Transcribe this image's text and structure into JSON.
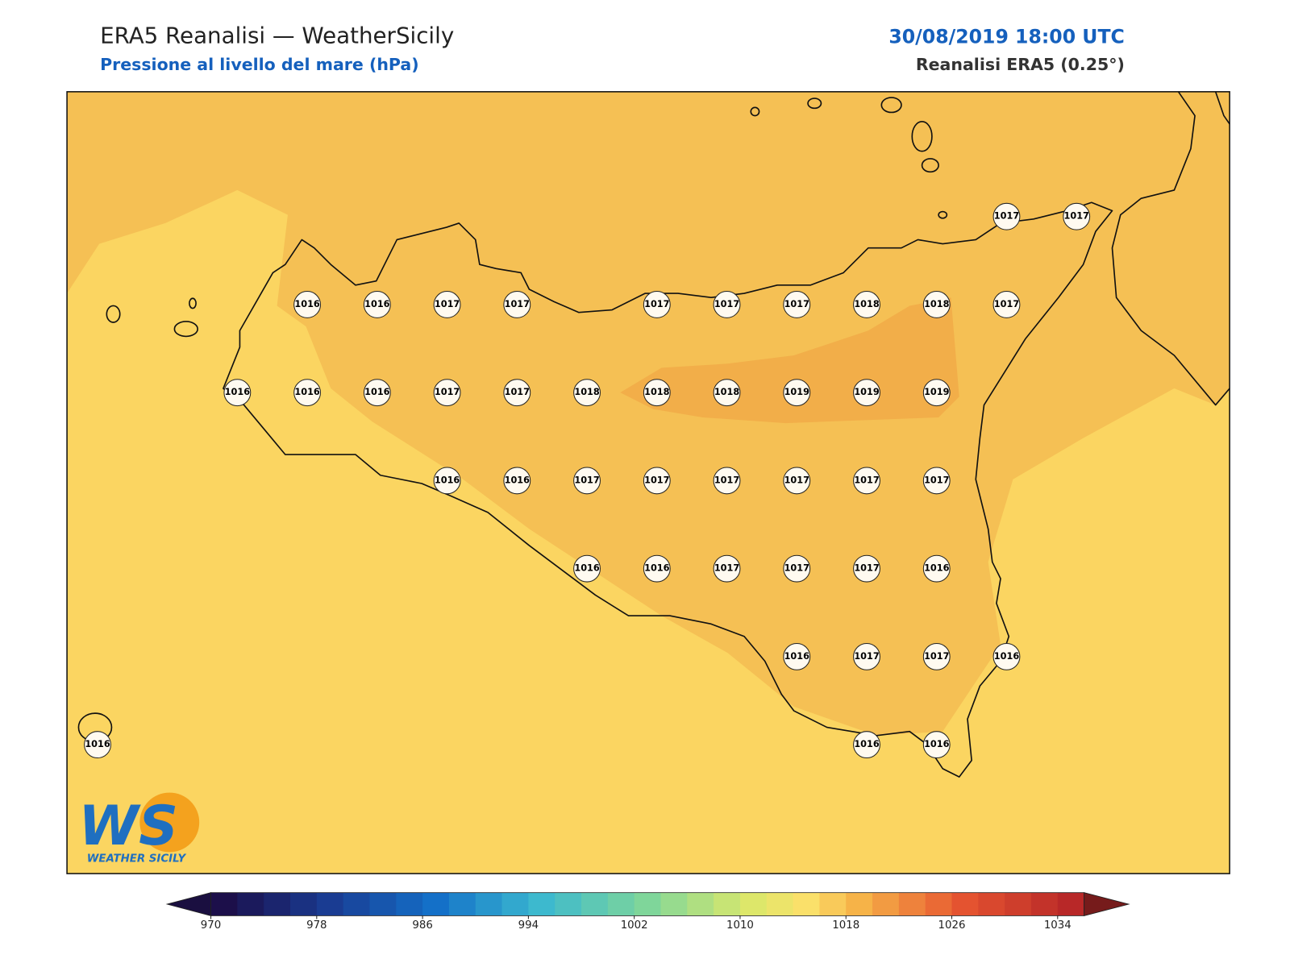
{
  "header": {
    "title": "ERA5 Reanalisi — WeatherSicily",
    "subtitle": "Pressione al livello del mare (hPa)",
    "datetime": "30/08/2019 18:00 UTC",
    "source": "Reanalisi ERA5 (0.25°)"
  },
  "map": {
    "points": [
      1017,
      1017,
      1016,
      1016,
      1017,
      1017,
      1017,
      1017,
      1017,
      1018,
      1018,
      1017,
      1016,
      1016,
      1016,
      1017,
      1017,
      1018,
      1018,
      1018,
      1019,
      1019,
      1019,
      1016,
      1016,
      1017,
      1017,
      1017,
      1017,
      1017,
      1017,
      1016,
      1016,
      1017,
      1017,
      1017,
      1016,
      1016,
      1017,
      1017,
      1016,
      1016,
      1016,
      1016
    ]
  },
  "colorbar": {
    "ticks": [
      970,
      978,
      986,
      994,
      1002,
      1010,
      1018,
      1026,
      1034
    ]
  },
  "logo": {
    "mark": "WS",
    "name": "WEATHER SICILY"
  }
}
